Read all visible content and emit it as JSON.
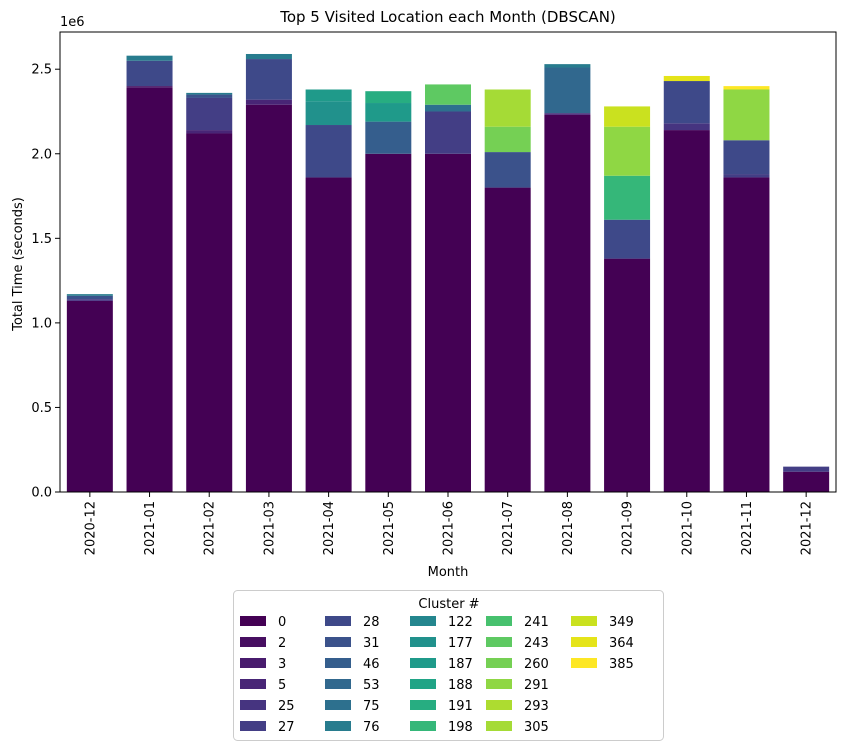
{
  "chart_data": {
    "type": "bar",
    "stacked": true,
    "title": "Top 5 Visited Location each Month (DBSCAN)",
    "xlabel": "Month",
    "ylabel": "Total Time (seconds)",
    "y_multiplier_label": "1e6",
    "ylim": [
      0,
      2.72
    ],
    "yticks": [
      "0.0",
      "0.5",
      "1.0",
      "1.5",
      "2.0",
      "2.5"
    ],
    "ytick_values": [
      0,
      0.5,
      1.0,
      1.5,
      2.0,
      2.5
    ],
    "categories": [
      "2020-12",
      "2021-01",
      "2021-02",
      "2021-03",
      "2021-04",
      "2021-05",
      "2021-06",
      "2021-07",
      "2021-08",
      "2021-09",
      "2021-10",
      "2021-11",
      "2021-12"
    ],
    "legend_title": "Cluster #",
    "series": [
      {
        "name": "0",
        "color": "#440154",
        "values": [
          1.13,
          2.39,
          2.12,
          2.29,
          1.86,
          2.0,
          2.0,
          1.8,
          2.23,
          1.38,
          2.14,
          1.86,
          0.12
        ]
      },
      {
        "name": "2",
        "color": "#470e61",
        "values": [
          0,
          0.01,
          0,
          0,
          0,
          0,
          0,
          0,
          0,
          0,
          0,
          0,
          0
        ]
      },
      {
        "name": "3",
        "color": "#481b6d",
        "values": [
          0,
          0,
          0,
          0,
          0,
          0,
          0,
          0,
          0,
          0,
          0,
          0,
          0
        ]
      },
      {
        "name": "5",
        "color": "#482576",
        "values": [
          0,
          0,
          0.02,
          0.03,
          0,
          0,
          0,
          0,
          0.01,
          0,
          0,
          0,
          0
        ]
      },
      {
        "name": "25",
        "color": "#463480",
        "values": [
          0.01,
          0,
          0,
          0,
          0,
          0,
          0,
          0,
          0,
          0,
          0.04,
          0,
          0
        ]
      },
      {
        "name": "27",
        "color": "#433e85",
        "values": [
          0,
          0,
          0.19,
          0,
          0,
          0,
          0.25,
          0,
          0,
          0,
          0,
          0.02,
          0.03
        ]
      },
      {
        "name": "28",
        "color": "#3e4989",
        "values": [
          0,
          0.15,
          0,
          0.24,
          0.31,
          0,
          0,
          0,
          0,
          0.23,
          0.25,
          0.2,
          0
        ]
      },
      {
        "name": "31",
        "color": "#3b528b",
        "values": [
          0.02,
          0,
          0.02,
          0,
          0,
          0,
          0,
          0.21,
          0,
          0,
          0,
          0,
          0
        ]
      },
      {
        "name": "46",
        "color": "#355e8d",
        "values": [
          0,
          0,
          0,
          0,
          0,
          0.19,
          0,
          0,
          0,
          0,
          0,
          0,
          0
        ]
      },
      {
        "name": "53",
        "color": "#31688e",
        "values": [
          0,
          0,
          0,
          0,
          0,
          0,
          0,
          0,
          0.27,
          0,
          0,
          0,
          0
        ]
      },
      {
        "name": "75",
        "color": "#2d708e",
        "values": [
          0,
          0,
          0,
          0,
          0,
          0,
          0.04,
          0,
          0,
          0,
          0,
          0,
          0
        ]
      },
      {
        "name": "76",
        "color": "#287c8e",
        "values": [
          0.01,
          0.03,
          0.01,
          0.03,
          0,
          0,
          0,
          0,
          0.02,
          0,
          0,
          0,
          0
        ]
      },
      {
        "name": "122",
        "color": "#24868e",
        "values": [
          0,
          0,
          0,
          0,
          0,
          0,
          0,
          0,
          0,
          0,
          0,
          0,
          0
        ]
      },
      {
        "name": "177",
        "color": "#21918c",
        "values": [
          0,
          0,
          0,
          0,
          0.14,
          0,
          0,
          0,
          0,
          0,
          0,
          0,
          0
        ]
      },
      {
        "name": "187",
        "color": "#1f9a8a",
        "values": [
          0,
          0,
          0,
          0,
          0.07,
          0.11,
          0,
          0,
          0,
          0,
          0,
          0,
          0
        ]
      },
      {
        "name": "188",
        "color": "#20a486",
        "values": [
          0,
          0,
          0,
          0,
          0,
          0,
          0,
          0,
          0,
          0,
          0,
          0,
          0
        ]
      },
      {
        "name": "191",
        "color": "#27ad81",
        "values": [
          0,
          0,
          0,
          0,
          0,
          0.07,
          0,
          0,
          0,
          0,
          0,
          0,
          0
        ]
      },
      {
        "name": "198",
        "color": "#35b779",
        "values": [
          0,
          0,
          0,
          0,
          0,
          0,
          0,
          0,
          0,
          0.26,
          0,
          0,
          0
        ]
      },
      {
        "name": "241",
        "color": "#47c16e",
        "values": [
          0,
          0,
          0,
          0,
          0,
          0,
          0,
          0,
          0,
          0,
          0,
          0,
          0
        ]
      },
      {
        "name": "243",
        "color": "#5ec962",
        "values": [
          0,
          0,
          0,
          0,
          0,
          0,
          0.12,
          0,
          0,
          0,
          0,
          0,
          0
        ]
      },
      {
        "name": "260",
        "color": "#75d054",
        "values": [
          0,
          0,
          0,
          0,
          0,
          0,
          0,
          0.15,
          0,
          0,
          0,
          0,
          0
        ]
      },
      {
        "name": "291",
        "color": "#8fd744",
        "values": [
          0,
          0,
          0,
          0,
          0,
          0,
          0,
          0,
          0,
          0.29,
          0,
          0.3,
          0
        ]
      },
      {
        "name": "293",
        "color": "#addc30",
        "values": [
          0,
          0,
          0,
          0,
          0,
          0,
          0,
          0,
          0,
          0,
          0,
          0,
          0
        ]
      },
      {
        "name": "305",
        "color": "#a5db36",
        "values": [
          0,
          0,
          0,
          0,
          0,
          0,
          0,
          0.22,
          0,
          0,
          0,
          0,
          0
        ]
      },
      {
        "name": "349",
        "color": "#cae11f",
        "values": [
          0,
          0,
          0,
          0,
          0,
          0,
          0,
          0,
          0,
          0.12,
          0,
          0,
          0
        ]
      },
      {
        "name": "364",
        "color": "#e5e419",
        "values": [
          0,
          0,
          0,
          0,
          0,
          0,
          0,
          0,
          0,
          0,
          0.03,
          0,
          0
        ]
      },
      {
        "name": "385",
        "color": "#fde725",
        "values": [
          0,
          0,
          0,
          0,
          0,
          0,
          0,
          0,
          0,
          0,
          0,
          0.02,
          0
        ]
      }
    ]
  }
}
